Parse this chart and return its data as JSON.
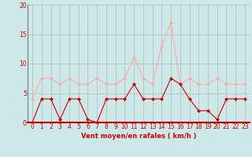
{
  "hours": [
    0,
    1,
    2,
    3,
    4,
    5,
    6,
    7,
    8,
    9,
    10,
    11,
    12,
    13,
    14,
    15,
    16,
    17,
    18,
    19,
    20,
    21,
    22,
    23
  ],
  "avg_wind": [
    0,
    4,
    4,
    0.5,
    4,
    4,
    0.5,
    0,
    4,
    4,
    4,
    6.5,
    4,
    4,
    4,
    7.5,
    6.5,
    4,
    2,
    2,
    0.5,
    4,
    4,
    4
  ],
  "gust_wind": [
    4,
    7.5,
    7.5,
    6.5,
    7.5,
    6.5,
    6.5,
    7.5,
    6.5,
    6.5,
    7.5,
    11,
    7.5,
    6.5,
    13,
    17,
    6.5,
    7.5,
    6.5,
    6.5,
    7.5,
    6.5,
    6.5,
    6.5
  ],
  "avg_color": "#cc0000",
  "gust_color": "#ffaaaa",
  "bg_color": "#cce8e8",
  "grid_color": "#aaaaaa",
  "xlabel": "Vent moyen/en rafales ( km/h )",
  "ylim": [
    0,
    20
  ],
  "yticks": [
    0,
    5,
    10,
    15,
    20
  ],
  "markersize": 2.5,
  "linewidth": 0.8,
  "tick_fontsize": 5.5,
  "xlabel_fontsize": 6.0
}
